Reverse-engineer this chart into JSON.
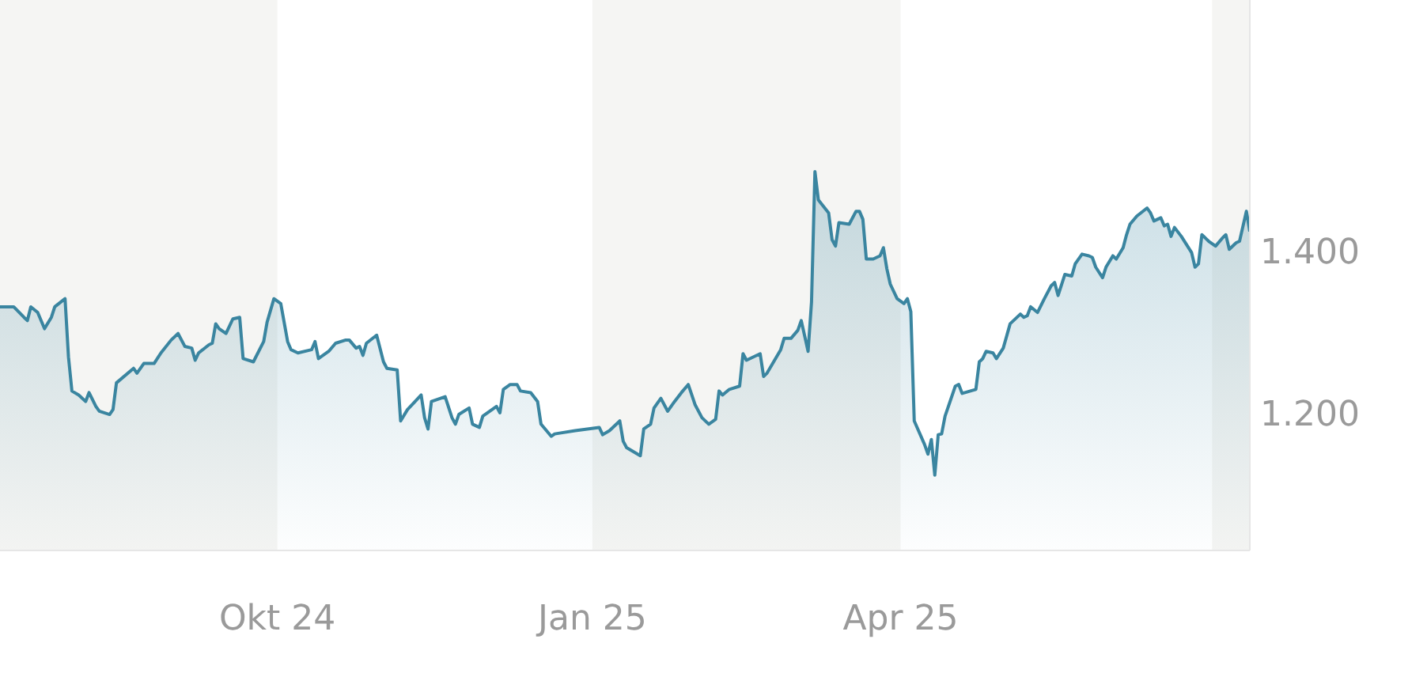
{
  "chart_data": {
    "type": "area",
    "color": "#3a85a0",
    "x": [
      "2024-07-12",
      "2024-07-16",
      "2024-07-19",
      "2024-07-20",
      "2024-07-21",
      "2024-07-23",
      "2024-07-25",
      "2024-07-27",
      "2024-07-28",
      "2024-07-31",
      "2024-08-01",
      "2024-08-02",
      "2024-08-04",
      "2024-08-06",
      "2024-08-07",
      "2024-08-09",
      "2024-08-10",
      "2024-08-13",
      "2024-08-14",
      "2024-08-15",
      "2024-08-20",
      "2024-08-21",
      "2024-08-23",
      "2024-08-26",
      "2024-08-28",
      "2024-08-31",
      "2024-09-02",
      "2024-09-04",
      "2024-09-06",
      "2024-09-07",
      "2024-09-08",
      "2024-09-11",
      "2024-09-12",
      "2024-09-13",
      "2024-09-14",
      "2024-09-16",
      "2024-09-18",
      "2024-09-20",
      "2024-09-21",
      "2024-09-24",
      "2024-09-27",
      "2024-09-28",
      "2024-09-30",
      "2024-10-02",
      "2024-10-04",
      "2024-10-05",
      "2024-10-07",
      "2024-10-11",
      "2024-10-12",
      "2024-10-13",
      "2024-10-16",
      "2024-10-18",
      "2024-10-21",
      "2024-10-22",
      "2024-10-24",
      "2024-10-25",
      "2024-10-26",
      "2024-10-27",
      "2024-10-30",
      "2024-11-01",
      "2024-11-02",
      "2024-11-05",
      "2024-11-06",
      "2024-11-08",
      "2024-11-12",
      "2024-11-13",
      "2024-11-14",
      "2024-11-15",
      "2024-11-19",
      "2024-11-21",
      "2024-11-22",
      "2024-11-23",
      "2024-11-26",
      "2024-11-27",
      "2024-11-29",
      "2024-11-30",
      "2024-12-04",
      "2024-12-05",
      "2024-12-06",
      "2024-12-08",
      "2024-12-10",
      "2024-12-11",
      "2024-12-14",
      "2024-12-16",
      "2024-12-17",
      "2024-12-20",
      "2024-12-21",
      "2024-12-27",
      "2025-01-03",
      "2025-01-04",
      "2025-01-06",
      "2025-01-09",
      "2025-01-10",
      "2025-01-11",
      "2025-01-15",
      "2025-01-16",
      "2025-01-18",
      "2025-01-19",
      "2025-01-21",
      "2025-01-23",
      "2025-01-25",
      "2025-01-27",
      "2025-01-29",
      "2025-01-31",
      "2025-02-02",
      "2025-02-04",
      "2025-02-06",
      "2025-02-07",
      "2025-02-08",
      "2025-02-10",
      "2025-02-13",
      "2025-02-14",
      "2025-02-15",
      "2025-02-19",
      "2025-02-20",
      "2025-02-21",
      "2025-02-25",
      "2025-02-26",
      "2025-02-28",
      "2025-03-02",
      "2025-03-03",
      "2025-03-05",
      "2025-03-06",
      "2025-03-07",
      "2025-03-08",
      "2025-03-11",
      "2025-03-12",
      "2025-03-13",
      "2025-03-14",
      "2025-03-17",
      "2025-03-19",
      "2025-03-20",
      "2025-03-21",
      "2025-03-22",
      "2025-03-24",
      "2025-03-26",
      "2025-03-27",
      "2025-03-28",
      "2025-03-29",
      "2025-03-31",
      "2025-04-02",
      "2025-04-03",
      "2025-04-04",
      "2025-04-05",
      "2025-04-08",
      "2025-04-09",
      "2025-04-10",
      "2025-04-11",
      "2025-04-12",
      "2025-04-13",
      "2025-04-14",
      "2025-04-17",
      "2025-04-18",
      "2025-04-19",
      "2025-04-23",
      "2025-04-24",
      "2025-04-25",
      "2025-04-26",
      "2025-04-28",
      "2025-04-29",
      "2025-05-01",
      "2025-05-03",
      "2025-05-06",
      "2025-05-07",
      "2025-05-08",
      "2025-05-09",
      "2025-05-11",
      "2025-05-13",
      "2025-05-15",
      "2025-05-16",
      "2025-05-17",
      "2025-05-19",
      "2025-05-21",
      "2025-05-22",
      "2025-05-24",
      "2025-05-26",
      "2025-05-27",
      "2025-05-28",
      "2025-05-30",
      "2025-05-31",
      "2025-06-02",
      "2025-06-03",
      "2025-06-05",
      "2025-06-06",
      "2025-06-07",
      "2025-06-09",
      "2025-06-12",
      "2025-06-13",
      "2025-06-14",
      "2025-06-16",
      "2025-06-17",
      "2025-06-18",
      "2025-06-19",
      "2025-06-20",
      "2025-06-22",
      "2025-06-25",
      "2025-06-26",
      "2025-06-27",
      "2025-06-28",
      "2025-06-30",
      "2025-07-02",
      "2025-07-04",
      "2025-07-05",
      "2025-07-06",
      "2025-07-08",
      "2025-07-09",
      "2025-07-11",
      "2025-07-12"
    ],
    "values": [
      1331,
      1331,
      1318,
      1314,
      1331,
      1324,
      1304,
      1318,
      1331,
      1341,
      1269,
      1227,
      1222,
      1214,
      1225,
      1208,
      1202,
      1198,
      1204,
      1237,
      1255,
      1249,
      1261,
      1261,
      1274,
      1290,
      1298,
      1282,
      1280,
      1265,
      1274,
      1284,
      1286,
      1310,
      1304,
      1298,
      1316,
      1318,
      1267,
      1263,
      1288,
      1312,
      1341,
      1335,
      1288,
      1278,
      1274,
      1278,
      1288,
      1267,
      1276,
      1286,
      1290,
      1290,
      1280,
      1282,
      1271,
      1286,
      1296,
      1263,
      1255,
      1253,
      1190,
      1204,
      1222,
      1194,
      1180,
      1214,
      1220,
      1194,
      1186,
      1198,
      1206,
      1186,
      1182,
      1196,
      1208,
      1200,
      1229,
      1235,
      1235,
      1227,
      1225,
      1214,
      1186,
      1171,
      1174,
      1178,
      1182,
      1173,
      1178,
      1190,
      1165,
      1157,
      1147,
      1180,
      1186,
      1206,
      1218,
      1202,
      1214,
      1225,
      1235,
      1210,
      1194,
      1186,
      1192,
      1227,
      1222,
      1229,
      1233,
      1273,
      1265,
      1273,
      1245,
      1249,
      1278,
      1292,
      1292,
      1302,
      1314,
      1276,
      1337,
      1498,
      1463,
      1447,
      1414,
      1406,
      1435,
      1433,
      1449,
      1449,
      1439,
      1390,
      1390,
      1394,
      1404,
      1378,
      1359,
      1341,
      1335,
      1341,
      1325,
      1190,
      1161,
      1149,
      1167,
      1123,
      1173,
      1174,
      1196,
      1233,
      1235,
      1224,
      1229,
      1263,
      1267,
      1276,
      1274,
      1267,
      1280,
      1310,
      1322,
      1318,
      1320,
      1331,
      1324,
      1341,
      1357,
      1361,
      1345,
      1371,
      1369,
      1384,
      1396,
      1394,
      1392,
      1380,
      1367,
      1380,
      1394,
      1390,
      1404,
      1420,
      1433,
      1443,
      1453,
      1447,
      1437,
      1441,
      1431,
      1433,
      1418,
      1429,
      1418,
      1398,
      1380,
      1384,
      1420,
      1412,
      1406,
      1416,
      1420,
      1402,
      1410,
      1412,
      1449,
      1424
    ],
    "xlim": [
      "2024-07-12",
      "2025-07-12"
    ],
    "xticks": [
      {
        "value": "2024-10-01",
        "label": "Okt 24"
      },
      {
        "value": "2025-01-01",
        "label": "Jan 25"
      },
      {
        "value": "2025-04-01",
        "label": "Apr 25"
      }
    ],
    "ylim": [
      1030,
      1710
    ],
    "yticks": [
      {
        "value": 1200,
        "label": "1.200"
      },
      {
        "value": 1400,
        "label": "1.400"
      }
    ],
    "bands": [
      {
        "axis": "x",
        "from": "2024-07-12",
        "to": "2024-10-01",
        "color": "#f5f5f3"
      },
      {
        "axis": "x",
        "from": "2025-01-01",
        "to": "2025-04-01",
        "color": "#f5f5f3"
      },
      {
        "axis": "x",
        "from": "2025-07-01",
        "to": "2025-07-12",
        "color": "#f5f5f3"
      }
    ],
    "grid": false,
    "legend": false
  }
}
